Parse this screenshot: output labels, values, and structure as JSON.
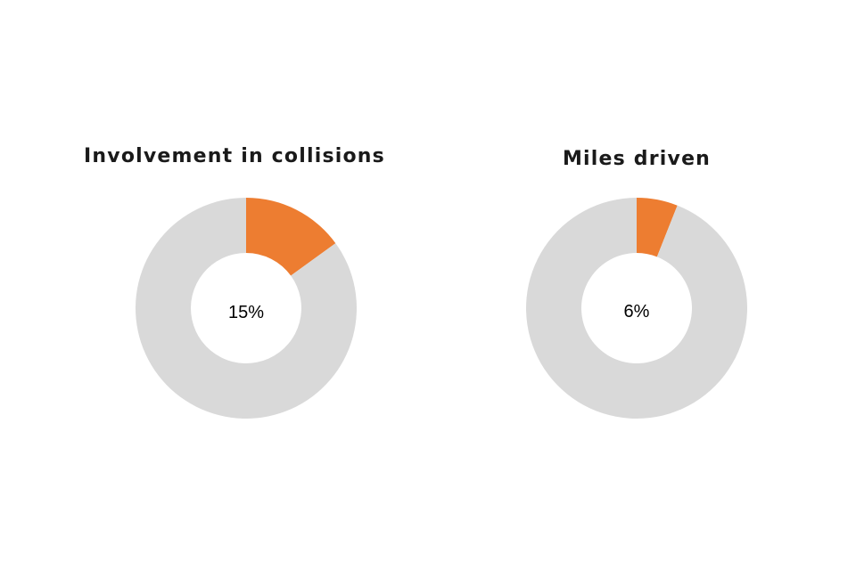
{
  "colors": {
    "highlight": "#ED7D31",
    "remainder": "#D9D9D9",
    "background": "#FFFFFF"
  },
  "chart_data": [
    {
      "type": "pie",
      "variant": "donut",
      "title": "Involvement in collisions",
      "center_label": "15%",
      "slices": [
        {
          "value": 15,
          "color": "#ED7D31"
        },
        {
          "value": 85,
          "color": "#D9D9D9"
        }
      ]
    },
    {
      "type": "pie",
      "variant": "donut",
      "title": "Miles driven",
      "center_label": "6%",
      "slices": [
        {
          "value": 6,
          "color": "#ED7D31"
        },
        {
          "value": 94,
          "color": "#D9D9D9"
        }
      ]
    }
  ]
}
